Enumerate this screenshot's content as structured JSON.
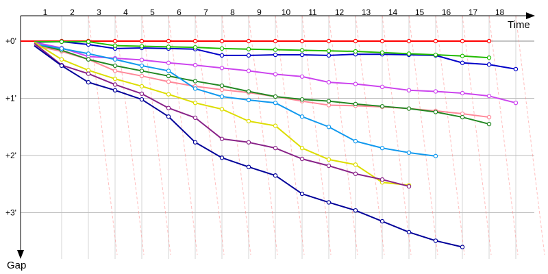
{
  "chart_data": {
    "type": "line",
    "x_axis_label": "Time",
    "y_axis_label": "Gap",
    "x_ticks": [
      "1",
      "2",
      "3",
      "4",
      "5",
      "6",
      "7",
      "8",
      "9",
      "10",
      "11",
      "12",
      "13",
      "14",
      "15",
      "16",
      "17",
      "18"
    ],
    "y_ticks": [
      "+0'",
      "+1'",
      "+2'",
      "+3'"
    ],
    "ylim": [
      0,
      3.6
    ],
    "grid": true,
    "series": [
      {
        "color": "#ff0000",
        "values": [
          0,
          0,
          0,
          0,
          0,
          0,
          0,
          0,
          0,
          0,
          0,
          0,
          0,
          0,
          0,
          0,
          0,
          0
        ]
      },
      {
        "color": "#0000c8",
        "values": [
          0.02,
          0.01,
          0.06,
          0.13,
          0.12,
          0.13,
          0.14,
          0.25,
          0.25,
          0.24,
          0.24,
          0.25,
          0.23,
          0.23,
          0.24,
          0.25,
          0.38,
          0.41,
          0.49
        ]
      },
      {
        "color": "#22bb00",
        "values": [
          0.01,
          0.01,
          0.01,
          0.08,
          0.09,
          0.1,
          0.11,
          0.13,
          0.14,
          0.15,
          0.16,
          0.17,
          0.18,
          0.2,
          0.22,
          0.24,
          0.26,
          0.29
        ]
      },
      {
        "color": "#cc44ee",
        "values": [
          0.02,
          0.12,
          0.27,
          0.3,
          0.33,
          0.38,
          0.42,
          0.47,
          0.52,
          0.58,
          0.62,
          0.72,
          0.75,
          0.8,
          0.86,
          0.88,
          0.91,
          0.96,
          1.08
        ]
      },
      {
        "color": "#ff8899",
        "values": [
          0.08,
          0.18,
          0.32,
          0.52,
          0.61,
          0.71,
          0.79,
          0.85,
          0.9,
          0.97,
          1.05,
          1.12,
          1.13,
          1.15,
          1.18,
          1.22,
          1.27,
          1.33
        ]
      },
      {
        "color": "#228822",
        "values": [
          0.05,
          0.16,
          0.32,
          0.43,
          0.52,
          0.61,
          0.7,
          0.78,
          0.88,
          0.97,
          1.02,
          1.05,
          1.1,
          1.14,
          1.18,
          1.24,
          1.33,
          1.45
        ]
      },
      {
        "color": "#1199ee",
        "values": [
          0.05,
          0.13,
          0.22,
          0.32,
          0.43,
          0.52,
          0.83,
          0.97,
          1.03,
          1.08,
          1.32,
          1.5,
          1.75,
          1.87,
          1.95,
          2.01
        ]
      },
      {
        "color": "#dddd00",
        "values": [
          0.02,
          0.32,
          0.51,
          0.66,
          0.79,
          0.93,
          1.08,
          1.19,
          1.4,
          1.48,
          1.87,
          2.07,
          2.16,
          2.47,
          2.52
        ]
      },
      {
        "color": "#882288",
        "values": [
          0.04,
          0.42,
          0.57,
          0.76,
          0.92,
          1.17,
          1.34,
          1.71,
          1.77,
          1.87,
          2.06,
          2.18,
          2.32,
          2.42,
          2.54
        ]
      },
      {
        "color": "#000099",
        "values": [
          0.08,
          0.43,
          0.72,
          0.86,
          1.02,
          1.32,
          1.77,
          2.04,
          2.2,
          2.35,
          2.67,
          2.82,
          2.96,
          3.15,
          3.34,
          3.49,
          3.6
        ]
      }
    ]
  }
}
